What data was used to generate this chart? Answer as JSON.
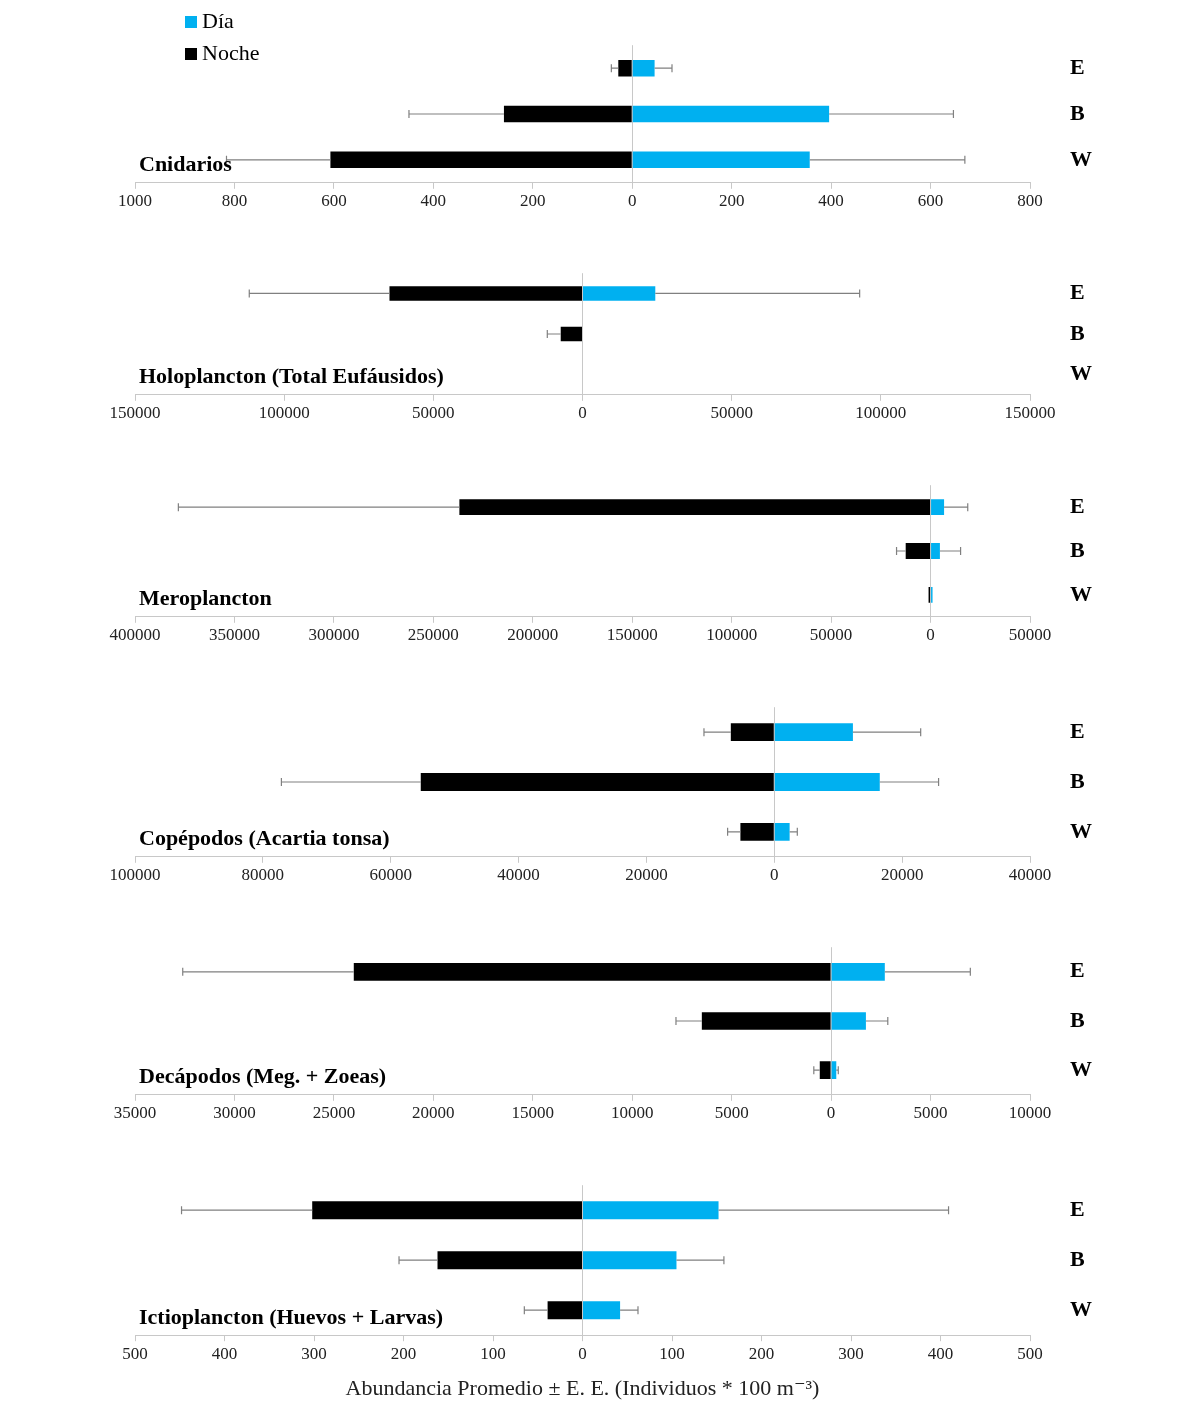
{
  "chart_data": [
    {
      "type": "bar",
      "orientation": "horizontal",
      "stacked": true,
      "title": "Cnidarios",
      "categories": [
        "E",
        "B",
        "W"
      ],
      "legend": "top left",
      "series": [
        {
          "name": "Día",
          "color": "#00b0f0",
          "values": [
            45,
            396,
            357
          ],
          "errors": [
            35,
            250,
            312
          ]
        },
        {
          "name": "Noche",
          "color": "#000000",
          "values": [
            -28,
            -258,
            -607
          ],
          "errors": [
            14,
            191,
            209
          ]
        }
      ],
      "xlim": [
        -1000,
        800
      ],
      "xticks": [
        {
          "value": -1000,
          "label": "1000"
        },
        {
          "value": -800,
          "label": "800"
        },
        {
          "value": -600,
          "label": "600"
        },
        {
          "value": -400,
          "label": "400"
        },
        {
          "value": -200,
          "label": "200"
        },
        0,
        200,
        400,
        600,
        800
      ]
    },
    {
      "type": "bar",
      "orientation": "horizontal",
      "stacked": true,
      "title": "Holoplancton (Total Eufáusidos)",
      "categories": [
        "E",
        "B",
        "W"
      ],
      "series": [
        {
          "color": "#00b0f0",
          "values": [
            24400,
            0,
            0
          ],
          "errors": [
            68500,
            null,
            null
          ]
        },
        {
          "color": "#000000",
          "values": [
            -64700,
            -7300,
            0
          ],
          "errors": [
            47000,
            4500,
            null
          ]
        }
      ],
      "xlim": [
        -150000,
        150000
      ],
      "xticks": [
        {
          "value": -150000,
          "label": "150000"
        },
        {
          "value": -100000,
          "label": "100000"
        },
        {
          "value": -50000,
          "label": "50000"
        },
        0,
        50000,
        100000,
        150000
      ]
    },
    {
      "type": "bar",
      "orientation": "horizontal",
      "stacked": true,
      "title": "Meroplancton",
      "categories": [
        "E",
        "B",
        "W"
      ],
      "series": [
        {
          "color": "#00b0f0",
          "values": [
            6800,
            4700,
            1000
          ],
          "errors": [
            11900,
            10400,
            null
          ]
        },
        {
          "color": "#000000",
          "values": [
            -236900,
            -12500,
            -1000
          ],
          "errors": [
            141300,
            4600,
            null
          ]
        }
      ],
      "xlim": [
        -400000,
        50000
      ],
      "xticks": [
        {
          "value": -400000,
          "label": "400000"
        },
        {
          "value": -350000,
          "label": "350000"
        },
        {
          "value": -300000,
          "label": "300000"
        },
        {
          "value": -250000,
          "label": "250000"
        },
        {
          "value": -200000,
          "label": "200000"
        },
        {
          "value": -150000,
          "label": "150000"
        },
        {
          "value": -100000,
          "label": "100000"
        },
        {
          "value": -50000,
          "label": "50000"
        },
        0,
        50000
      ]
    },
    {
      "type": "bar",
      "orientation": "horizontal",
      "stacked": true,
      "title": "Copépodos (Acartia tonsa)",
      "categories": [
        "E",
        "B",
        "W"
      ],
      "series": [
        {
          "color": "#00b0f0",
          "values": [
            12300,
            16500,
            2400
          ],
          "errors": [
            10600,
            9200,
            1200
          ]
        },
        {
          "color": "#000000",
          "values": [
            -6800,
            -55300,
            -5300
          ],
          "errors": [
            4200,
            21800,
            2000
          ]
        }
      ],
      "xlim": [
        -100000,
        40000
      ],
      "xticks": [
        {
          "value": -100000,
          "label": "100000"
        },
        {
          "value": -80000,
          "label": "80000"
        },
        {
          "value": -60000,
          "label": "60000"
        },
        {
          "value": -40000,
          "label": "40000"
        },
        {
          "value": -20000,
          "label": "20000"
        },
        0,
        20000,
        40000
      ]
    },
    {
      "type": "bar",
      "orientation": "horizontal",
      "stacked": true,
      "title": "Decápodos (Meg. + Zoeas)",
      "categories": [
        "E",
        "B",
        "W"
      ],
      "series": [
        {
          "color": "#00b0f0",
          "values": [
            2700,
            1750,
            260
          ],
          "errors": [
            4300,
            1100,
            100
          ]
        },
        {
          "color": "#000000",
          "values": [
            -24000,
            -6500,
            -570
          ],
          "errors": [
            8600,
            1300,
            300
          ]
        }
      ],
      "xlim": [
        -35000,
        10000
      ],
      "xticks": [
        {
          "value": -35000,
          "label": "35000"
        },
        {
          "value": -30000,
          "label": "30000"
        },
        {
          "value": -25000,
          "label": "25000"
        },
        {
          "value": -20000,
          "label": "20000"
        },
        {
          "value": -15000,
          "label": "15000"
        },
        {
          "value": -10000,
          "label": "10000"
        },
        {
          "value": -5000,
          "label": "5000"
        },
        0,
        5000,
        10000
      ]
    },
    {
      "type": "bar",
      "orientation": "horizontal",
      "stacked": true,
      "title": "Ictioplancton (Huevos + Larvas)",
      "categories": [
        "E",
        "B",
        "W"
      ],
      "xlabel": "Abundancia Promedio ± E. E. (Individuos * 100 m⁻³)",
      "series": [
        {
          "color": "#00b0f0",
          "values": [
            152,
            105,
            42
          ],
          "errors": [
            257,
            53,
            20
          ]
        },
        {
          "color": "#000000",
          "values": [
            -302,
            -162,
            -39
          ],
          "errors": [
            146,
            43,
            26
          ]
        }
      ],
      "xlim": [
        -500,
        500
      ],
      "xticks": [
        {
          "value": -500,
          "label": "500"
        },
        {
          "value": -400,
          "label": "400"
        },
        {
          "value": -300,
          "label": "300"
        },
        {
          "value": -200,
          "label": "200"
        },
        {
          "value": -100,
          "label": "100"
        },
        0,
        100,
        200,
        300,
        400,
        500
      ]
    }
  ]
}
